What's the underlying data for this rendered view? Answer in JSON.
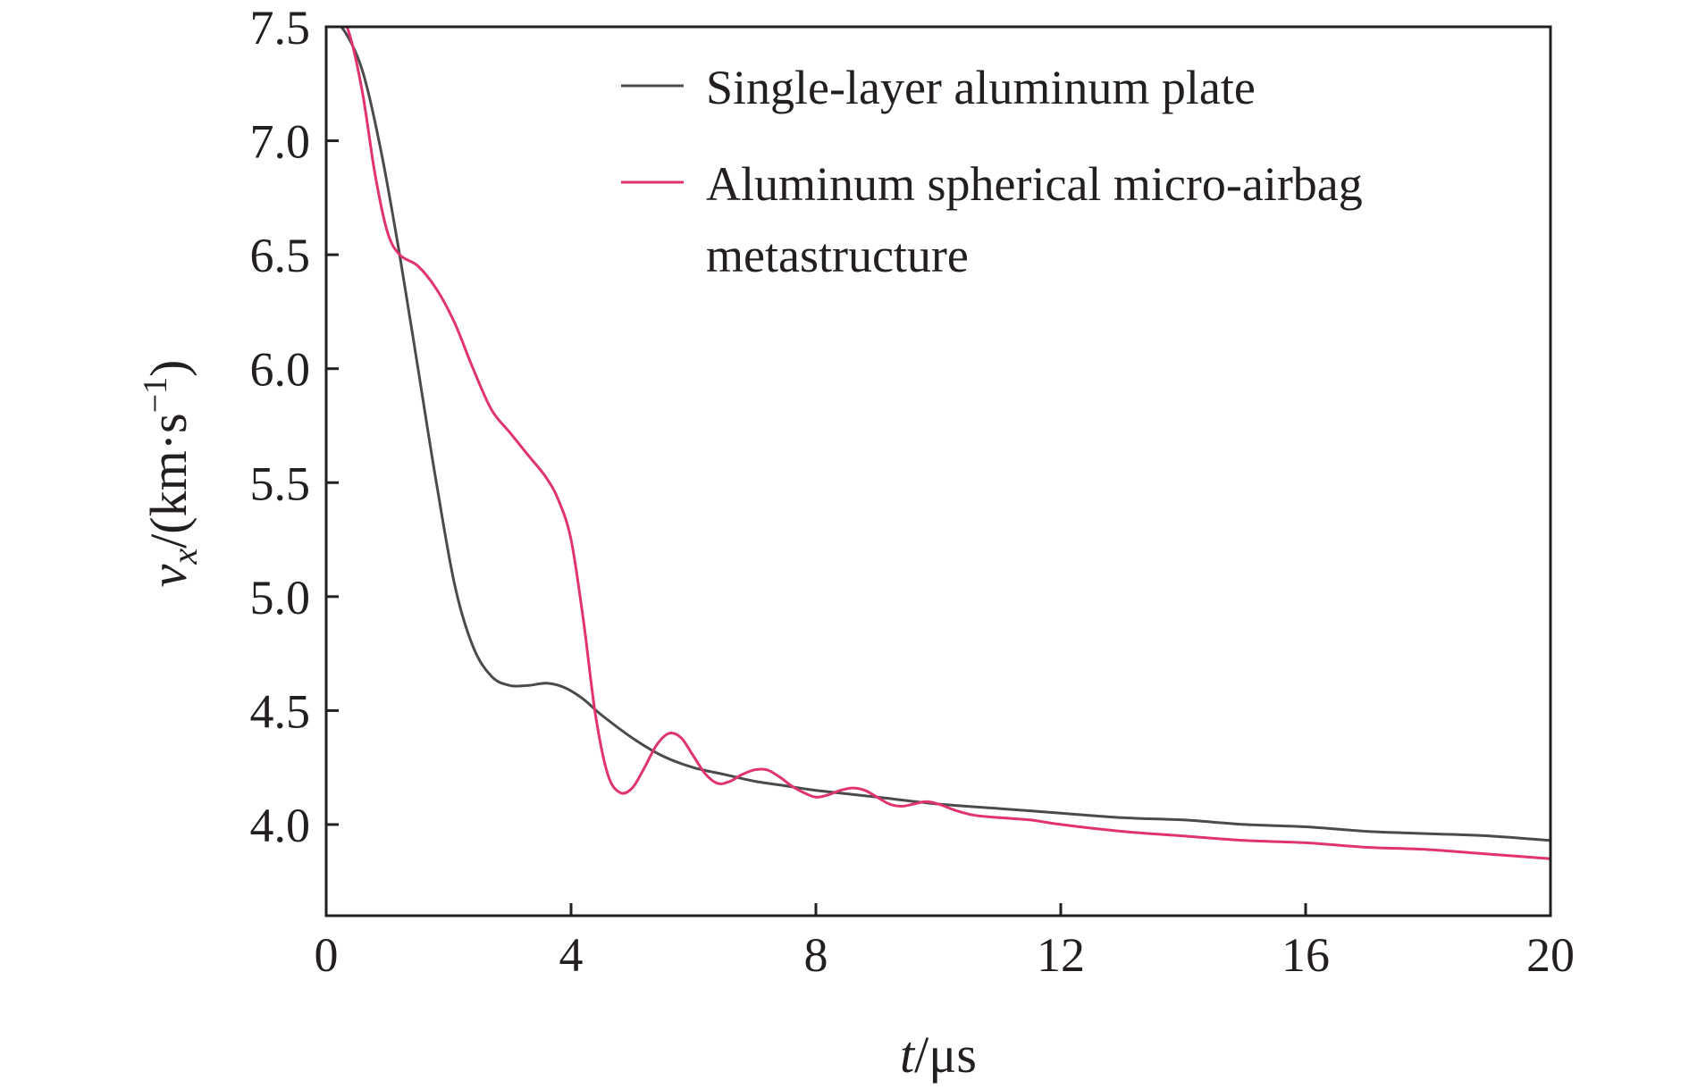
{
  "chart_data": {
    "type": "line",
    "xlabel": {
      "italic": "t",
      "rest": "/μs"
    },
    "ylabel": {
      "italic": "v",
      "sub": "x",
      "rest": "/(km·s",
      "sup": "−1",
      "close": ")"
    },
    "xlim": [
      0,
      20
    ],
    "ylim": [
      3.6,
      7.5
    ],
    "xticks": [
      0,
      4,
      8,
      12,
      16,
      20
    ],
    "xtick_labels": [
      "0",
      "4",
      "8",
      "12",
      "16",
      "20"
    ],
    "yticks": [
      4.0,
      4.5,
      5.0,
      5.5,
      6.0,
      6.5,
      7.0,
      7.5
    ],
    "ytick_labels": [
      "4.0",
      "4.5",
      "5.0",
      "5.5",
      "6.0",
      "6.5",
      "7.0",
      "7.5"
    ],
    "grid": false,
    "legend_position": "top-right",
    "legend": [
      {
        "lines": [
          "Single-layer aluminum plate"
        ]
      },
      {
        "lines": [
          "Aluminum spherical micro-airbag",
          "metastructure"
        ]
      }
    ],
    "series": [
      {
        "name": "Single-layer aluminum plate",
        "color": "#4a4a4f",
        "x": [
          0,
          0.3,
          0.6,
          0.9,
          1.2,
          1.5,
          1.8,
          2.1,
          2.4,
          2.7,
          3.0,
          3.3,
          3.6,
          3.9,
          4.2,
          4.5,
          5.0,
          5.5,
          6.0,
          6.5,
          7.0,
          7.5,
          8.0,
          9.0,
          10.0,
          11.0,
          12.0,
          13.0,
          14.0,
          15.0,
          16.0,
          17.0,
          18.0,
          19.0,
          20.0
        ],
        "y": [
          7.55,
          7.48,
          7.3,
          6.95,
          6.5,
          6.0,
          5.5,
          5.05,
          4.78,
          4.65,
          4.61,
          4.61,
          4.62,
          4.6,
          4.55,
          4.48,
          4.38,
          4.3,
          4.25,
          4.22,
          4.19,
          4.17,
          4.15,
          4.12,
          4.09,
          4.07,
          4.05,
          4.03,
          4.02,
          4.0,
          3.99,
          3.97,
          3.96,
          3.95,
          3.93
        ]
      },
      {
        "name": "Aluminum spherical micro-airbag metastructure",
        "color": "#e0336f",
        "x": [
          0,
          0.2,
          0.4,
          0.6,
          0.8,
          1.0,
          1.2,
          1.5,
          1.8,
          2.1,
          2.4,
          2.7,
          3.0,
          3.3,
          3.6,
          3.8,
          4.0,
          4.2,
          4.4,
          4.6,
          4.8,
          5.0,
          5.2,
          5.4,
          5.6,
          5.8,
          6.0,
          6.2,
          6.4,
          6.6,
          6.8,
          7.0,
          7.2,
          7.4,
          7.6,
          7.8,
          8.0,
          8.2,
          8.4,
          8.6,
          8.8,
          9.0,
          9.2,
          9.4,
          9.6,
          9.8,
          10.0,
          10.3,
          10.6,
          11.0,
          11.5,
          12.0,
          13.0,
          14.0,
          15.0,
          16.0,
          17.0,
          18.0,
          19.0,
          20.0
        ],
        "y": [
          7.62,
          7.58,
          7.45,
          7.2,
          6.85,
          6.6,
          6.5,
          6.45,
          6.35,
          6.2,
          6.0,
          5.82,
          5.72,
          5.62,
          5.52,
          5.42,
          5.25,
          4.9,
          4.48,
          4.22,
          4.14,
          4.16,
          4.25,
          4.35,
          4.4,
          4.38,
          4.3,
          4.22,
          4.18,
          4.19,
          4.22,
          4.24,
          4.24,
          4.21,
          4.17,
          4.14,
          4.12,
          4.13,
          4.15,
          4.16,
          4.15,
          4.12,
          4.09,
          4.08,
          4.09,
          4.1,
          4.09,
          4.06,
          4.04,
          4.03,
          4.02,
          4.0,
          3.97,
          3.95,
          3.93,
          3.92,
          3.9,
          3.89,
          3.87,
          3.85
        ]
      }
    ]
  }
}
